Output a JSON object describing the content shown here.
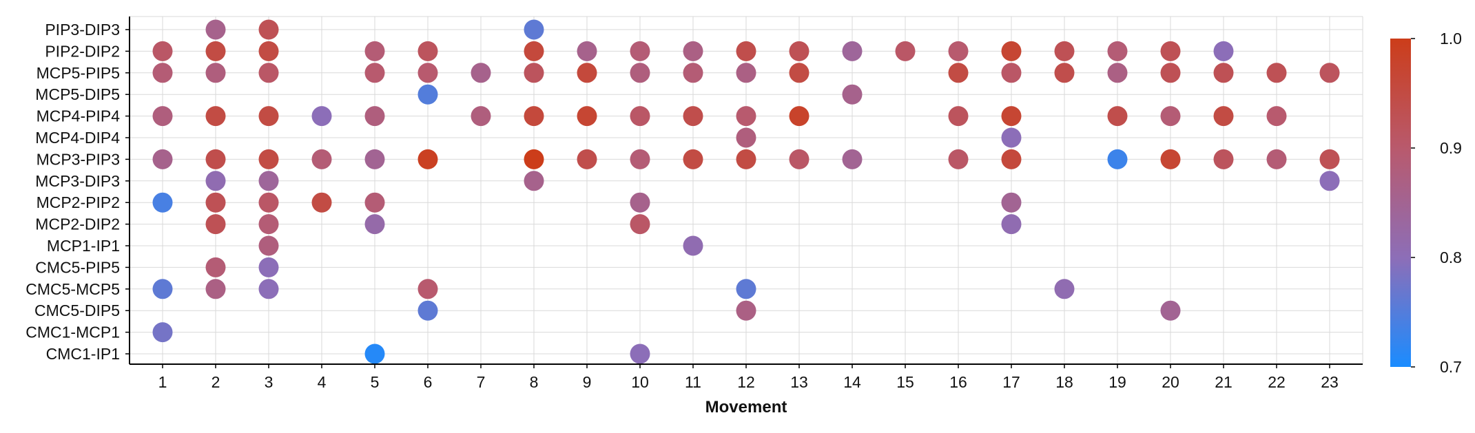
{
  "chart_data": {
    "type": "scatter",
    "title": "",
    "xlabel": "Movement",
    "ylabel": "",
    "x_categories": [
      "1",
      "2",
      "3",
      "4",
      "5",
      "6",
      "7",
      "8",
      "9",
      "10",
      "11",
      "12",
      "13",
      "14",
      "15",
      "16",
      "17",
      "18",
      "19",
      "20",
      "21",
      "22",
      "23"
    ],
    "y_categories": [
      "PIP3-DIP3",
      "PIP2-DIP2",
      "MCP5-PIP5",
      "MCP5-DIP5",
      "MCP4-PIP4",
      "MCP4-DIP4",
      "MCP3-PIP3",
      "MCP3-DIP3",
      "MCP2-PIP2",
      "MCP2-DIP2",
      "MCP1-IP1",
      "CMC5-PIP5",
      "CMC5-MCP5",
      "CMC5-DIP5",
      "CMC1-MCP1",
      "CMC1-IP1"
    ],
    "grid": true,
    "colorbar": {
      "min": 0.7,
      "max": 1.0,
      "ticks": [
        "0.7",
        "0.8",
        "0.9",
        "1.0"
      ],
      "colors": [
        "#1a8cff",
        "#8c6eb8",
        "#b85a6e",
        "#cc3d1a"
      ]
    },
    "points": [
      {
        "x": 2,
        "y": "PIP3-DIP3",
        "value": 0.86
      },
      {
        "x": 3,
        "y": "PIP3-DIP3",
        "value": 0.93
      },
      {
        "x": 8,
        "y": "PIP3-DIP3",
        "value": 0.76
      },
      {
        "x": 1,
        "y": "PIP2-DIP2",
        "value": 0.91
      },
      {
        "x": 2,
        "y": "PIP2-DIP2",
        "value": 0.95
      },
      {
        "x": 3,
        "y": "PIP2-DIP2",
        "value": 0.95
      },
      {
        "x": 5,
        "y": "PIP2-DIP2",
        "value": 0.89
      },
      {
        "x": 6,
        "y": "PIP2-DIP2",
        "value": 0.92
      },
      {
        "x": 8,
        "y": "PIP2-DIP2",
        "value": 0.96
      },
      {
        "x": 9,
        "y": "PIP2-DIP2",
        "value": 0.86
      },
      {
        "x": 10,
        "y": "PIP2-DIP2",
        "value": 0.89
      },
      {
        "x": 11,
        "y": "PIP2-DIP2",
        "value": 0.87
      },
      {
        "x": 12,
        "y": "PIP2-DIP2",
        "value": 0.94
      },
      {
        "x": 13,
        "y": "PIP2-DIP2",
        "value": 0.93
      },
      {
        "x": 14,
        "y": "PIP2-DIP2",
        "value": 0.84
      },
      {
        "x": 15,
        "y": "PIP2-DIP2",
        "value": 0.91
      },
      {
        "x": 16,
        "y": "PIP2-DIP2",
        "value": 0.9
      },
      {
        "x": 17,
        "y": "PIP2-DIP2",
        "value": 0.97
      },
      {
        "x": 18,
        "y": "PIP2-DIP2",
        "value": 0.93
      },
      {
        "x": 19,
        "y": "PIP2-DIP2",
        "value": 0.89
      },
      {
        "x": 20,
        "y": "PIP2-DIP2",
        "value": 0.93
      },
      {
        "x": 21,
        "y": "PIP2-DIP2",
        "value": 0.8
      },
      {
        "x": 1,
        "y": "MCP5-PIP5",
        "value": 0.89
      },
      {
        "x": 2,
        "y": "MCP5-PIP5",
        "value": 0.88
      },
      {
        "x": 3,
        "y": "MCP5-PIP5",
        "value": 0.91
      },
      {
        "x": 5,
        "y": "MCP5-PIP5",
        "value": 0.9
      },
      {
        "x": 6,
        "y": "MCP5-PIP5",
        "value": 0.9
      },
      {
        "x": 7,
        "y": "MCP5-PIP5",
        "value": 0.86
      },
      {
        "x": 8,
        "y": "MCP5-PIP5",
        "value": 0.92
      },
      {
        "x": 9,
        "y": "MCP5-PIP5",
        "value": 0.96
      },
      {
        "x": 10,
        "y": "MCP5-PIP5",
        "value": 0.88
      },
      {
        "x": 11,
        "y": "MCP5-PIP5",
        "value": 0.89
      },
      {
        "x": 12,
        "y": "MCP5-PIP5",
        "value": 0.87
      },
      {
        "x": 13,
        "y": "MCP5-PIP5",
        "value": 0.95
      },
      {
        "x": 16,
        "y": "MCP5-PIP5",
        "value": 0.95
      },
      {
        "x": 17,
        "y": "MCP5-PIP5",
        "value": 0.91
      },
      {
        "x": 18,
        "y": "MCP5-PIP5",
        "value": 0.94
      },
      {
        "x": 19,
        "y": "MCP5-PIP5",
        "value": 0.87
      },
      {
        "x": 20,
        "y": "MCP5-PIP5",
        "value": 0.93
      },
      {
        "x": 21,
        "y": "MCP5-PIP5",
        "value": 0.93
      },
      {
        "x": 22,
        "y": "MCP5-PIP5",
        "value": 0.93
      },
      {
        "x": 23,
        "y": "MCP5-PIP5",
        "value": 0.92
      },
      {
        "x": 6,
        "y": "MCP5-DIP5",
        "value": 0.75
      },
      {
        "x": 14,
        "y": "MCP5-DIP5",
        "value": 0.86
      },
      {
        "x": 1,
        "y": "MCP4-PIP4",
        "value": 0.88
      },
      {
        "x": 2,
        "y": "MCP4-PIP4",
        "value": 0.95
      },
      {
        "x": 3,
        "y": "MCP4-PIP4",
        "value": 0.95
      },
      {
        "x": 4,
        "y": "MCP4-PIP4",
        "value": 0.8
      },
      {
        "x": 5,
        "y": "MCP4-PIP4",
        "value": 0.88
      },
      {
        "x": 7,
        "y": "MCP4-PIP4",
        "value": 0.88
      },
      {
        "x": 8,
        "y": "MCP4-PIP4",
        "value": 0.96
      },
      {
        "x": 9,
        "y": "MCP4-PIP4",
        "value": 0.97
      },
      {
        "x": 10,
        "y": "MCP4-PIP4",
        "value": 0.91
      },
      {
        "x": 11,
        "y": "MCP4-PIP4",
        "value": 0.94
      },
      {
        "x": 12,
        "y": "MCP4-PIP4",
        "value": 0.9
      },
      {
        "x": 13,
        "y": "MCP4-PIP4",
        "value": 0.98
      },
      {
        "x": 16,
        "y": "MCP4-PIP4",
        "value": 0.92
      },
      {
        "x": 17,
        "y": "MCP4-PIP4",
        "value": 0.97
      },
      {
        "x": 19,
        "y": "MCP4-PIP4",
        "value": 0.94
      },
      {
        "x": 20,
        "y": "MCP4-PIP4",
        "value": 0.89
      },
      {
        "x": 21,
        "y": "MCP4-PIP4",
        "value": 0.95
      },
      {
        "x": 22,
        "y": "MCP4-PIP4",
        "value": 0.9
      },
      {
        "x": 12,
        "y": "MCP4-DIP4",
        "value": 0.88
      },
      {
        "x": 17,
        "y": "MCP4-DIP4",
        "value": 0.8
      },
      {
        "x": 1,
        "y": "MCP3-PIP3",
        "value": 0.86
      },
      {
        "x": 2,
        "y": "MCP3-PIP3",
        "value": 0.94
      },
      {
        "x": 3,
        "y": "MCP3-PIP3",
        "value": 0.95
      },
      {
        "x": 4,
        "y": "MCP3-PIP3",
        "value": 0.89
      },
      {
        "x": 5,
        "y": "MCP3-PIP3",
        "value": 0.85
      },
      {
        "x": 6,
        "y": "MCP3-PIP3",
        "value": 0.99
      },
      {
        "x": 8,
        "y": "MCP3-PIP3",
        "value": 1.0
      },
      {
        "x": 9,
        "y": "MCP3-PIP3",
        "value": 0.94
      },
      {
        "x": 10,
        "y": "MCP3-PIP3",
        "value": 0.89
      },
      {
        "x": 11,
        "y": "MCP3-PIP3",
        "value": 0.95
      },
      {
        "x": 12,
        "y": "MCP3-PIP3",
        "value": 0.95
      },
      {
        "x": 13,
        "y": "MCP3-PIP3",
        "value": 0.91
      },
      {
        "x": 14,
        "y": "MCP3-PIP3",
        "value": 0.85
      },
      {
        "x": 16,
        "y": "MCP3-PIP3",
        "value": 0.91
      },
      {
        "x": 17,
        "y": "MCP3-PIP3",
        "value": 0.96
      },
      {
        "x": 19,
        "y": "MCP3-PIP3",
        "value": 0.73
      },
      {
        "x": 20,
        "y": "MCP3-PIP3",
        "value": 0.97
      },
      {
        "x": 21,
        "y": "MCP3-PIP3",
        "value": 0.92
      },
      {
        "x": 22,
        "y": "MCP3-PIP3",
        "value": 0.89
      },
      {
        "x": 23,
        "y": "MCP3-PIP3",
        "value": 0.93
      },
      {
        "x": 2,
        "y": "MCP3-DIP3",
        "value": 0.81
      },
      {
        "x": 3,
        "y": "MCP3-DIP3",
        "value": 0.84
      },
      {
        "x": 8,
        "y": "MCP3-DIP3",
        "value": 0.86
      },
      {
        "x": 23,
        "y": "MCP3-DIP3",
        "value": 0.8
      },
      {
        "x": 1,
        "y": "MCP2-PIP2",
        "value": 0.74
      },
      {
        "x": 2,
        "y": "MCP2-PIP2",
        "value": 0.93
      },
      {
        "x": 3,
        "y": "MCP2-PIP2",
        "value": 0.91
      },
      {
        "x": 4,
        "y": "MCP2-PIP2",
        "value": 0.95
      },
      {
        "x": 5,
        "y": "MCP2-PIP2",
        "value": 0.89
      },
      {
        "x": 10,
        "y": "MCP2-PIP2",
        "value": 0.86
      },
      {
        "x": 17,
        "y": "MCP2-PIP2",
        "value": 0.85
      },
      {
        "x": 2,
        "y": "MCP2-DIP2",
        "value": 0.93
      },
      {
        "x": 3,
        "y": "MCP2-DIP2",
        "value": 0.89
      },
      {
        "x": 5,
        "y": "MCP2-DIP2",
        "value": 0.82
      },
      {
        "x": 10,
        "y": "MCP2-DIP2",
        "value": 0.91
      },
      {
        "x": 17,
        "y": "MCP2-DIP2",
        "value": 0.81
      },
      {
        "x": 3,
        "y": "MCP1-IP1",
        "value": 0.88
      },
      {
        "x": 11,
        "y": "MCP1-IP1",
        "value": 0.81
      },
      {
        "x": 2,
        "y": "CMC5-PIP5",
        "value": 0.89
      },
      {
        "x": 3,
        "y": "CMC5-PIP5",
        "value": 0.8
      },
      {
        "x": 1,
        "y": "CMC5-MCP5",
        "value": 0.76
      },
      {
        "x": 2,
        "y": "CMC5-MCP5",
        "value": 0.87
      },
      {
        "x": 3,
        "y": "CMC5-MCP5",
        "value": 0.8
      },
      {
        "x": 6,
        "y": "CMC5-MCP5",
        "value": 0.9
      },
      {
        "x": 12,
        "y": "CMC5-MCP5",
        "value": 0.76
      },
      {
        "x": 18,
        "y": "CMC5-MCP5",
        "value": 0.81
      },
      {
        "x": 6,
        "y": "CMC5-DIP5",
        "value": 0.76
      },
      {
        "x": 12,
        "y": "CMC5-DIP5",
        "value": 0.87
      },
      {
        "x": 20,
        "y": "CMC5-DIP5",
        "value": 0.85
      },
      {
        "x": 1,
        "y": "CMC1-MCP1",
        "value": 0.78
      },
      {
        "x": 5,
        "y": "CMC1-IP1",
        "value": 0.71
      },
      {
        "x": 10,
        "y": "CMC1-IP1",
        "value": 0.8
      }
    ]
  }
}
